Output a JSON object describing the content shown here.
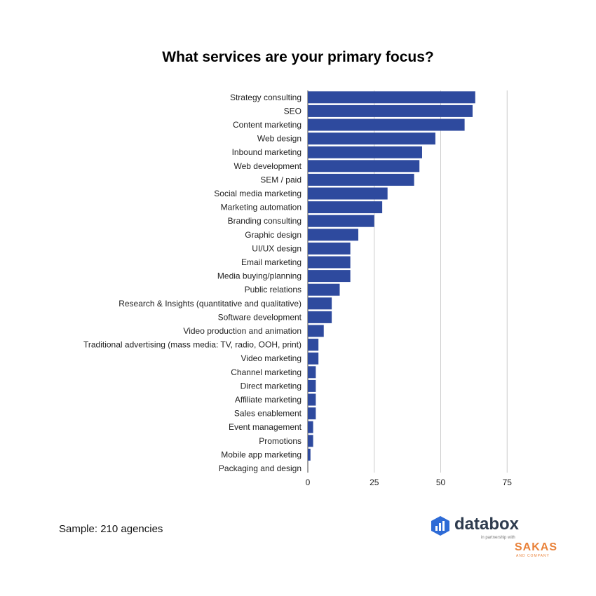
{
  "chart_data": {
    "type": "bar",
    "orientation": "horizontal",
    "title": "What services are your primary focus?",
    "categories": [
      "Strategy consulting",
      "SEO",
      "Content marketing",
      "Web design",
      "Inbound marketing",
      "Web development",
      "SEM / paid",
      "Social media marketing",
      "Marketing automation",
      "Branding consulting",
      "Graphic design",
      "UI/UX design",
      "Email marketing",
      "Media buying/planning",
      "Public relations",
      "Research & Insights (quantitative and qualitative)",
      "Software development",
      "Video production and animation",
      "Traditional advertising (mass media: TV, radio, OOH, print)",
      "Video marketing",
      "Channel marketing",
      "Direct marketing",
      "Affiliate marketing",
      "Sales enablement",
      "Event management",
      "Promotions",
      "Mobile app marketing",
      "Packaging and design"
    ],
    "values": [
      63,
      62,
      59,
      48,
      43,
      42,
      40,
      30,
      28,
      25,
      19,
      16,
      16,
      16,
      12,
      9,
      9,
      6,
      4,
      4,
      3,
      3,
      3,
      3,
      2,
      2,
      1,
      0
    ],
    "xlim": [
      0,
      75
    ],
    "xticks": [
      "0",
      "25",
      "50",
      "75"
    ],
    "xlabel": "",
    "ylabel": "",
    "grid": true,
    "bar_color": "#2e4a9e",
    "grid_color": "#cccccc"
  },
  "footer": {
    "sample_note": "Sample: 210 agencies"
  },
  "logos": {
    "databox": "databox",
    "partnership": "in partnership with",
    "sakas": "SAKAS",
    "sakas_sub": "AND COMPANY",
    "databox_icon": "databox-hexagon-icon",
    "databox_color": "#2e6bd6"
  }
}
